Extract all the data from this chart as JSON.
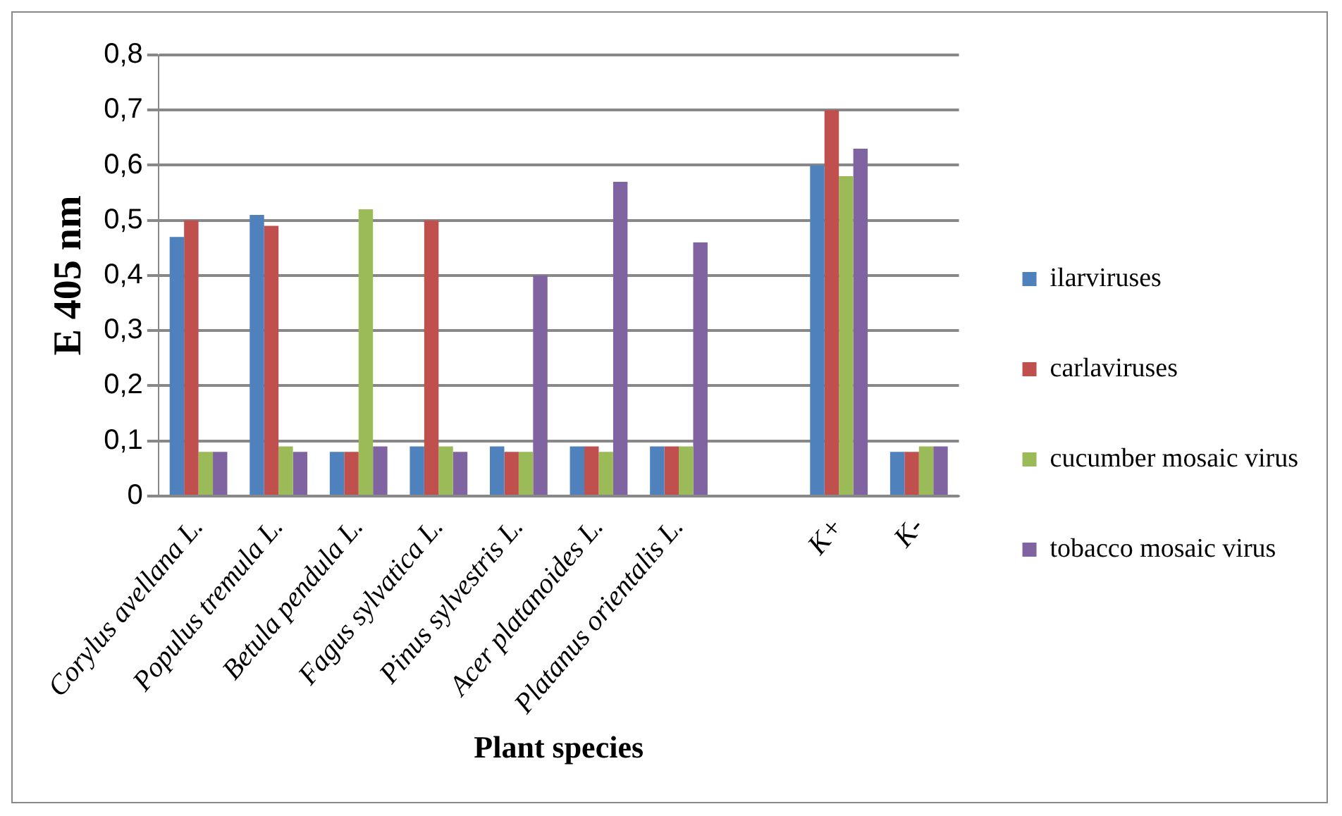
{
  "chart_data": {
    "type": "bar",
    "xlabel": "Plant species",
    "ylabel": "E 405 nm",
    "categories": [
      "Corylus avellana L.",
      "Populus tremula L.",
      "Betula pendula L.",
      "Fagus sylvatica L.",
      "Pinus sylvestris L.",
      "Acer platanoides L.",
      "Platanus orientalis L.",
      null,
      "K+",
      "K-"
    ],
    "series": [
      {
        "name": "ilarviruses",
        "color": "#4f81bd",
        "values": [
          0.47,
          0.51,
          0.08,
          0.09,
          0.09,
          0.09,
          0.09,
          null,
          0.6,
          0.08
        ]
      },
      {
        "name": "carlaviruses",
        "color": "#c0504d",
        "values": [
          0.5,
          0.49,
          0.08,
          0.5,
          0.08,
          0.09,
          0.09,
          null,
          0.7,
          0.08
        ]
      },
      {
        "name": "cucumber mosaic virus",
        "color": "#9bbb59",
        "values": [
          0.08,
          0.09,
          0.52,
          0.09,
          0.08,
          0.08,
          0.09,
          null,
          0.58,
          0.09
        ]
      },
      {
        "name": "tobacco mosaic virus",
        "color": "#8064a2",
        "values": [
          0.08,
          0.08,
          0.09,
          0.08,
          0.4,
          0.57,
          0.46,
          null,
          0.63,
          0.09
        ]
      }
    ],
    "ylim": [
      0,
      0.8
    ],
    "yticks": [
      0,
      {
        "value": 0.1,
        "label": "0,1"
      },
      {
        "value": 0.2,
        "label": "0,2"
      },
      {
        "value": 0.3,
        "label": "0,3"
      },
      {
        "value": 0.4,
        "label": "0,4"
      },
      {
        "value": 0.5,
        "label": "0,5"
      },
      {
        "value": 0.6,
        "label": "0,6"
      },
      {
        "value": 0.7,
        "label": "0,7"
      },
      {
        "value": 0.8,
        "label": "0,8"
      }
    ],
    "grid": "y",
    "legend": "right",
    "marker": "square"
  }
}
